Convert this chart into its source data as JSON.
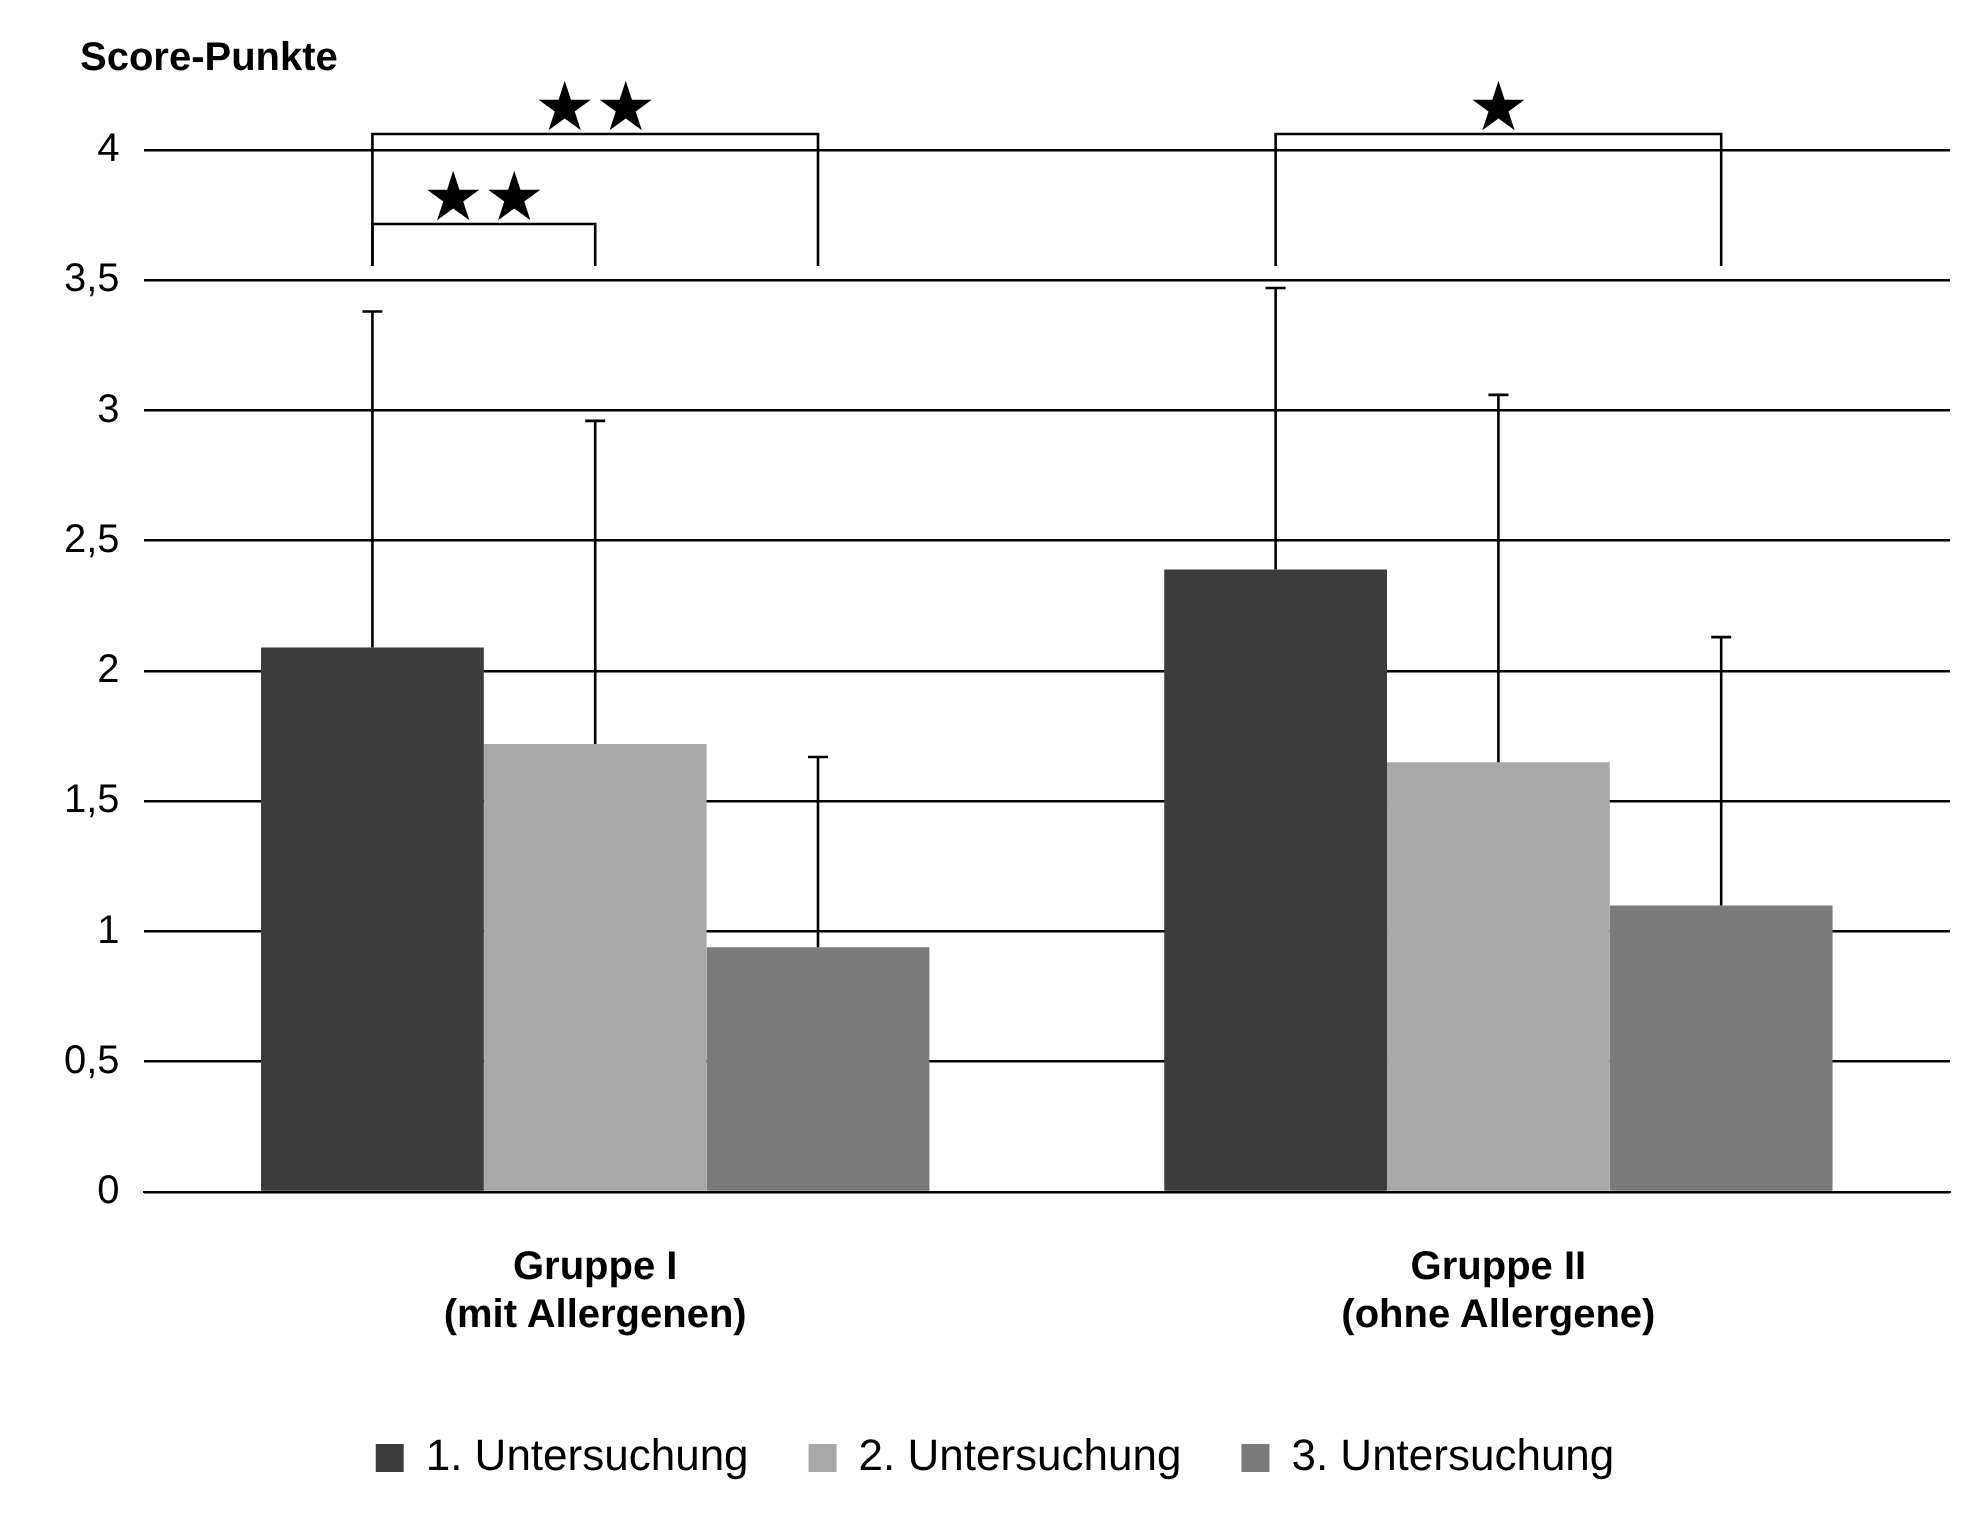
{
  "chart_data": {
    "type": "bar",
    "ylabel": "Score-Punkte",
    "categories": [
      "Gruppe I\n(mit Allergenen)",
      "Gruppe II\n(ohne Allergene)"
    ],
    "series": [
      {
        "name": "1. Untersuchung",
        "color": "#3c3c3c",
        "values": [
          2.09,
          2.39
        ],
        "errors": [
          [
            2.09,
            3.38
          ],
          [
            2.39,
            3.47
          ]
        ]
      },
      {
        "name": "2. Untersuchung",
        "color": "#a8a8a8",
        "values": [
          1.72,
          1.65
        ],
        "errors": [
          [
            1.72,
            2.96
          ],
          [
            1.65,
            3.06
          ]
        ]
      },
      {
        "name": "3. Untersuchung",
        "color": "#7a7a7a",
        "values": [
          0.94,
          1.1
        ],
        "errors": [
          [
            0.94,
            1.67
          ],
          [
            1.1,
            2.13
          ]
        ]
      }
    ],
    "ylim": [
      0,
      4
    ],
    "yticks": [
      0,
      {
        "value": 0.5,
        "label": "0,5"
      },
      1,
      {
        "value": 1.5,
        "label": "1,5"
      },
      2,
      {
        "value": 2.5,
        "label": "2,5"
      },
      3,
      {
        "value": 3.5,
        "label": "3,5"
      },
      4
    ],
    "grid": "y",
    "legend": "bottom",
    "annotations": [
      "★★",
      "★★",
      "★"
    ]
  }
}
